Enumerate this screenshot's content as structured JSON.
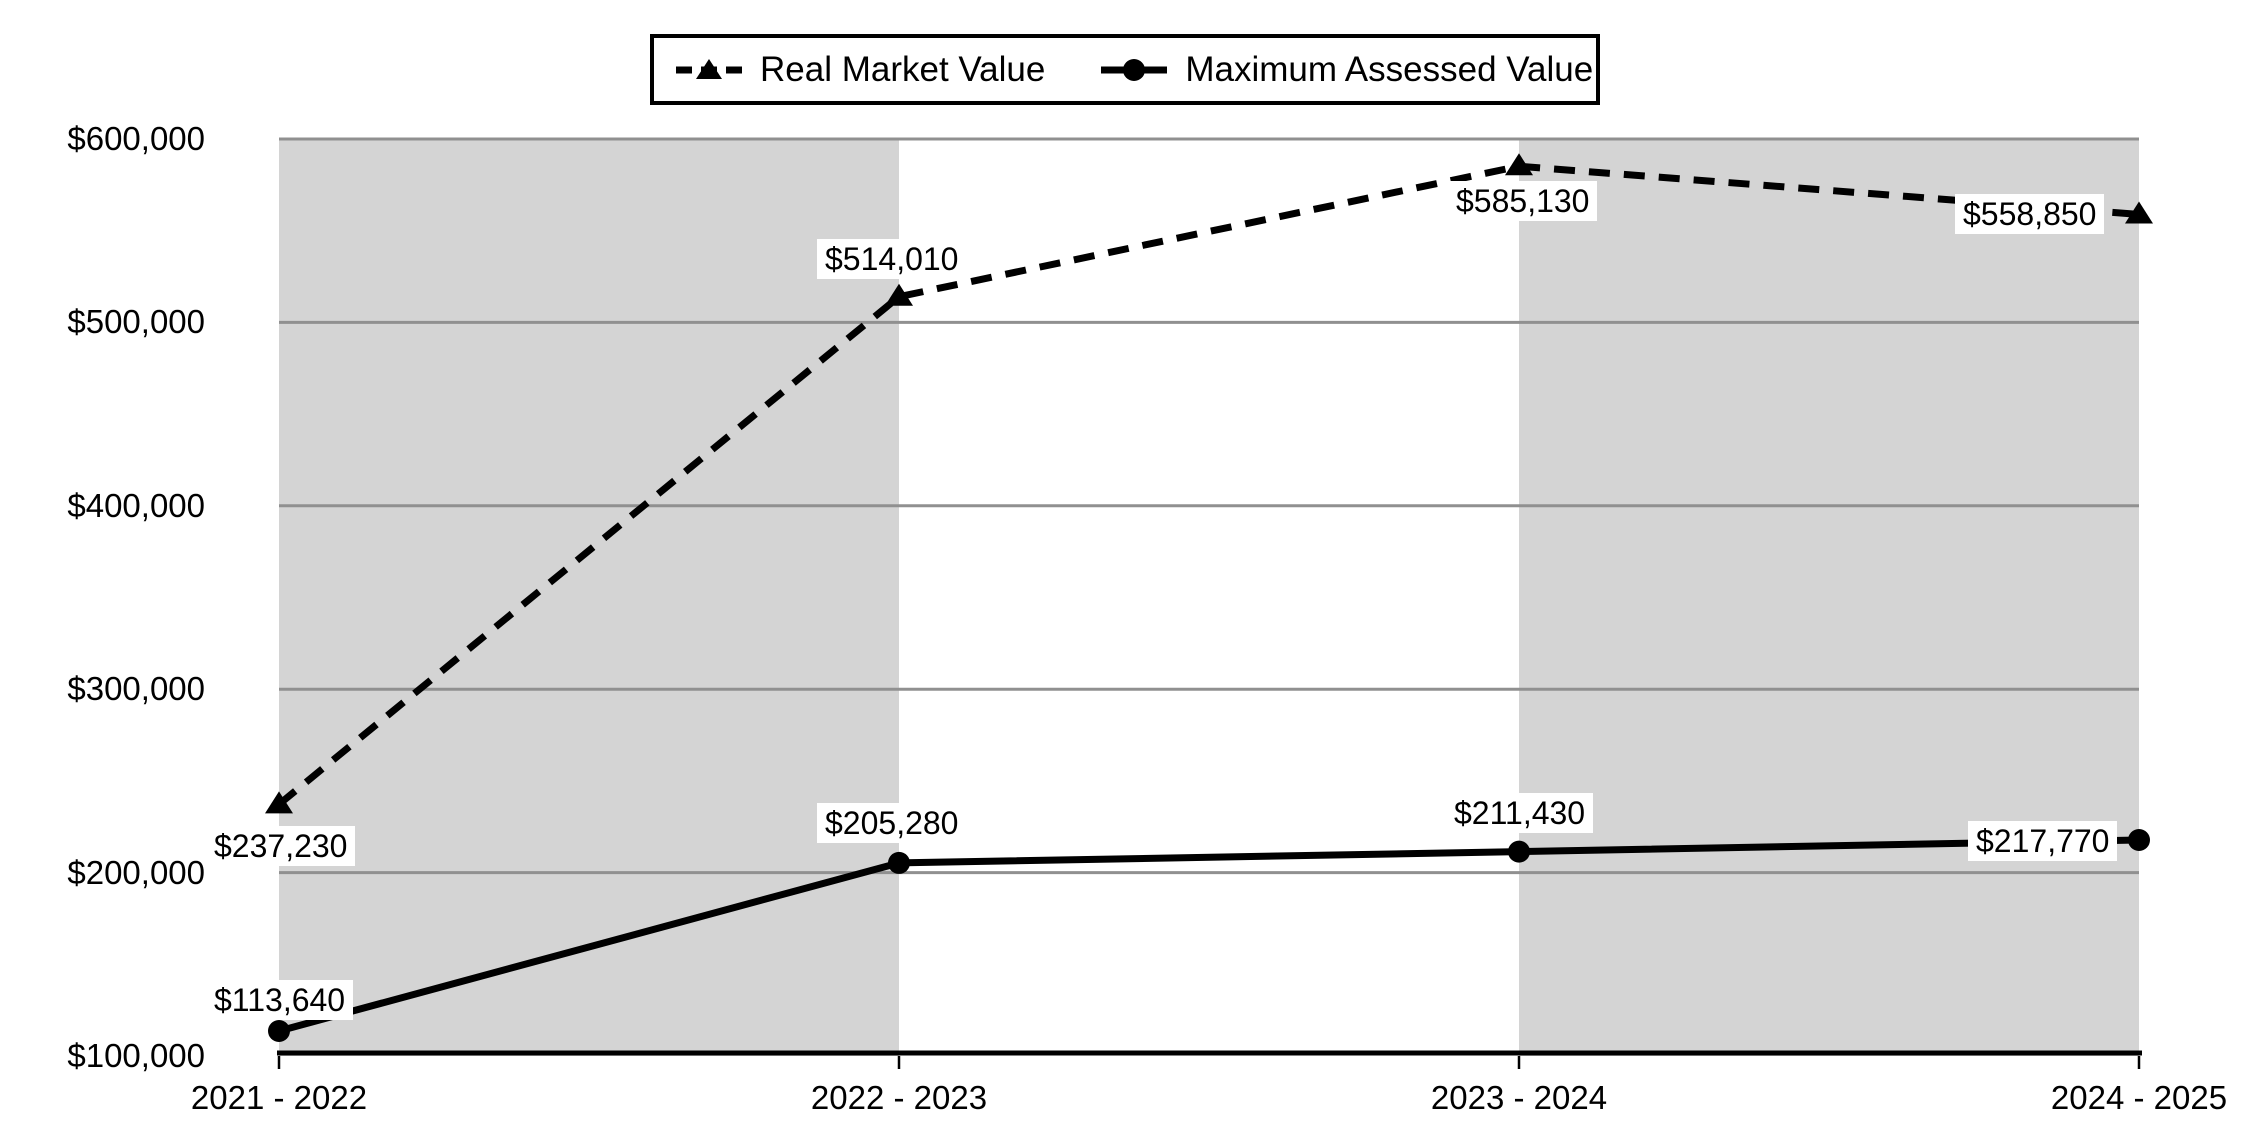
{
  "chart_data": {
    "type": "line",
    "title": "",
    "categories": [
      "2021 - 2022",
      "2022 - 2023",
      "2023 - 2024",
      "2024 - 2025"
    ],
    "series": [
      {
        "name": "Real Market Value",
        "line_style": "dashed",
        "marker": "triangle",
        "color": "#000000",
        "values": [
          237230,
          514010,
          585130,
          558850
        ],
        "labels": [
          "$237,230",
          "$514,010",
          "$585,130",
          "$558,850"
        ]
      },
      {
        "name": "Maximum Assessed Value",
        "line_style": "solid",
        "marker": "circle",
        "color": "#000000",
        "values": [
          113640,
          205280,
          211430,
          217770
        ],
        "labels": [
          "$113,640",
          "$205,280",
          "$211,430",
          "$217,770"
        ]
      }
    ],
    "y_axis": {
      "min": 100000,
      "max": 600000,
      "step": 100000,
      "tick_labels": [
        "$100,000",
        "$200,000",
        "$300,000",
        "$400,000",
        "$500,000",
        "$600,000"
      ]
    },
    "x_axis": {
      "tick_labels": [
        "2021 - 2022",
        "2022 - 2023",
        "2023 - 2024",
        "2024 - 2025"
      ]
    },
    "legend_position": "top",
    "grid": true,
    "colors": {
      "band_gray": "#d4d4d4",
      "band_white": "#ffffff",
      "gridline": "#909090",
      "axis_line": "#000000",
      "label_background": "#ffffff",
      "text": "#000000"
    }
  }
}
